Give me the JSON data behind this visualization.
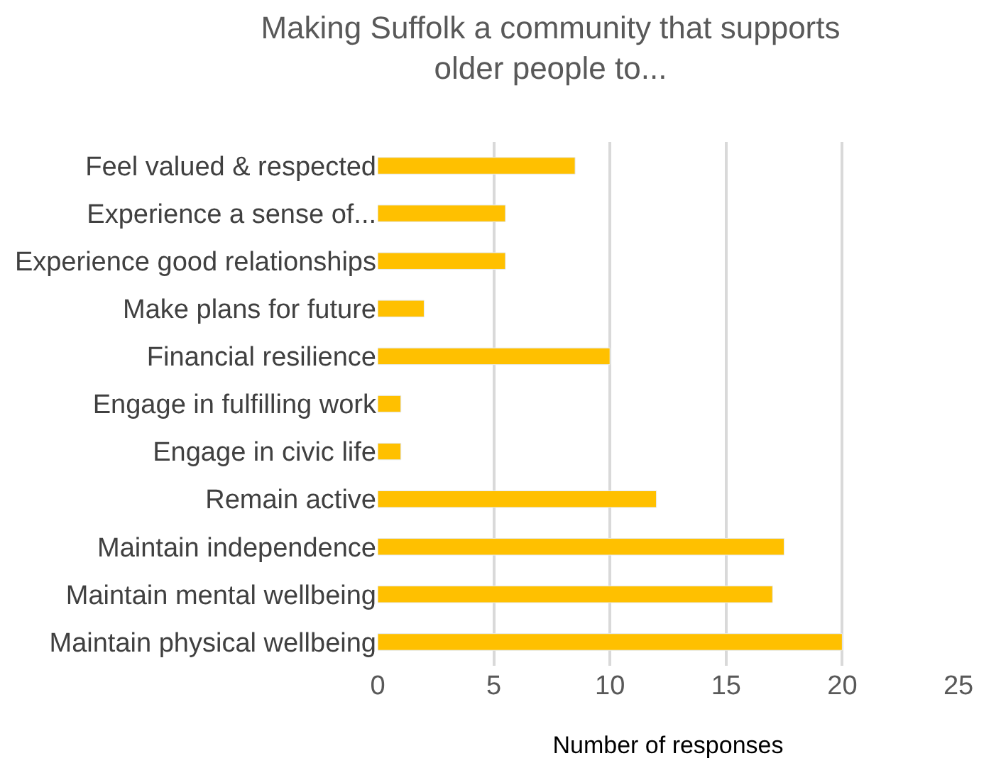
{
  "chart_data": {
    "type": "bar",
    "orientation": "horizontal",
    "title": "Making Suffolk a community that supports\nolder people to...",
    "xlabel": "Number of responses",
    "categories": [
      "Feel valued & respected",
      "Experience a sense of...",
      "Experience good relationships",
      "Make plans for future",
      "Financial resilience",
      "Engage in fulfilling work",
      "Engage in civic life",
      "Remain active",
      "Maintain independence",
      "Maintain mental wellbeing",
      "Maintain physical wellbeing"
    ],
    "values": [
      8.5,
      5.5,
      5.5,
      2,
      10,
      1,
      1,
      12,
      17.5,
      17,
      20
    ],
    "color": "#ffc000",
    "xlim": [
      0,
      25
    ],
    "xticks": [
      0,
      5,
      10,
      15,
      20,
      25
    ],
    "grid": "x"
  }
}
